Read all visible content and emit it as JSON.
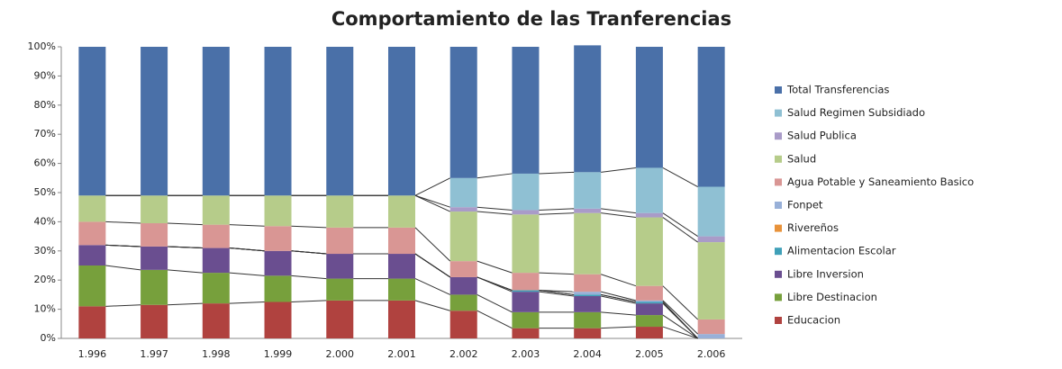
{
  "chart_data": {
    "type": "stacked_bar_100",
    "title": "Comportamiento de las Tranferencias",
    "categories": [
      "1.996",
      "1.997",
      "1.998",
      "1.999",
      "2.000",
      "2.001",
      "2.002",
      "2.003",
      "2.004",
      "2.005",
      "2.006"
    ],
    "series": [
      {
        "name": "Educacion",
        "color": "#b0423f",
        "values": [
          11,
          11.5,
          12,
          12.5,
          13,
          13,
          9.5,
          3.5,
          3.5,
          4,
          0
        ]
      },
      {
        "name": "Libre Destinacion",
        "color": "#77a03c",
        "values": [
          14,
          12,
          10.5,
          9,
          7.5,
          7.5,
          5.5,
          5.5,
          5.5,
          4,
          0
        ]
      },
      {
        "name": "Libre Inversion",
        "color": "#6a4e90",
        "values": [
          7,
          8,
          8.5,
          8.5,
          8.5,
          8.5,
          6,
          7,
          5.5,
          4,
          0
        ]
      },
      {
        "name": "Alimentacion Escolar",
        "color": "#3fa0b8",
        "values": [
          0,
          0,
          0,
          0,
          0,
          0,
          0,
          0.5,
          0.5,
          0.5,
          0
        ]
      },
      {
        "name": "Rivereños",
        "color": "#e8923a",
        "values": [
          0,
          0,
          0,
          0,
          0,
          0,
          0,
          0,
          0,
          0,
          0
        ]
      },
      {
        "name": "Fonpet",
        "color": "#98b0d8",
        "values": [
          0,
          0,
          0,
          0,
          0,
          0,
          0,
          0,
          1,
          0.5,
          1.5
        ]
      },
      {
        "name": "Agua Potable y Saneamiento Basico",
        "color": "#d99694",
        "values": [
          8,
          8,
          8,
          8.5,
          9,
          9,
          5.5,
          6,
          6,
          5,
          5
        ]
      },
      {
        "name": "Salud",
        "color": "#b6cc8a",
        "values": [
          9,
          9.5,
          10,
          10.5,
          11,
          11,
          17,
          20,
          21,
          23.5,
          26.5
        ]
      },
      {
        "name": "Salud Publica",
        "color": "#a99bc8",
        "values": [
          0,
          0,
          0,
          0,
          0,
          0,
          1.5,
          1.5,
          1.5,
          1.5,
          2
        ]
      },
      {
        "name": "Salud Regimen Subsidiado",
        "color": "#8fc0d3",
        "values": [
          0,
          0,
          0,
          0,
          0,
          0,
          10,
          12.5,
          12.5,
          15.5,
          17
        ]
      },
      {
        "name": "Total Transferencias",
        "color": "#4a70a8",
        "values": [
          51,
          51,
          51,
          51,
          51,
          51,
          45,
          43.5,
          43.5,
          41.5,
          48
        ]
      }
    ],
    "ylim": [
      0,
      100
    ],
    "yticks": [
      {
        "value": 0,
        "label": "0%"
      },
      {
        "value": 10,
        "label": "10%"
      },
      {
        "value": 20,
        "label": "20%"
      },
      {
        "value": 30,
        "label": "30%"
      },
      {
        "value": 40,
        "label": "40%"
      },
      {
        "value": 50,
        "label": "50%"
      },
      {
        "value": 60,
        "label": "60%"
      },
      {
        "value": 70,
        "label": "70%"
      },
      {
        "value": 80,
        "label": "80%"
      },
      {
        "value": 90,
        "label": "90%"
      },
      {
        "value": 100,
        "label": "100%"
      }
    ],
    "legend": "right"
  }
}
